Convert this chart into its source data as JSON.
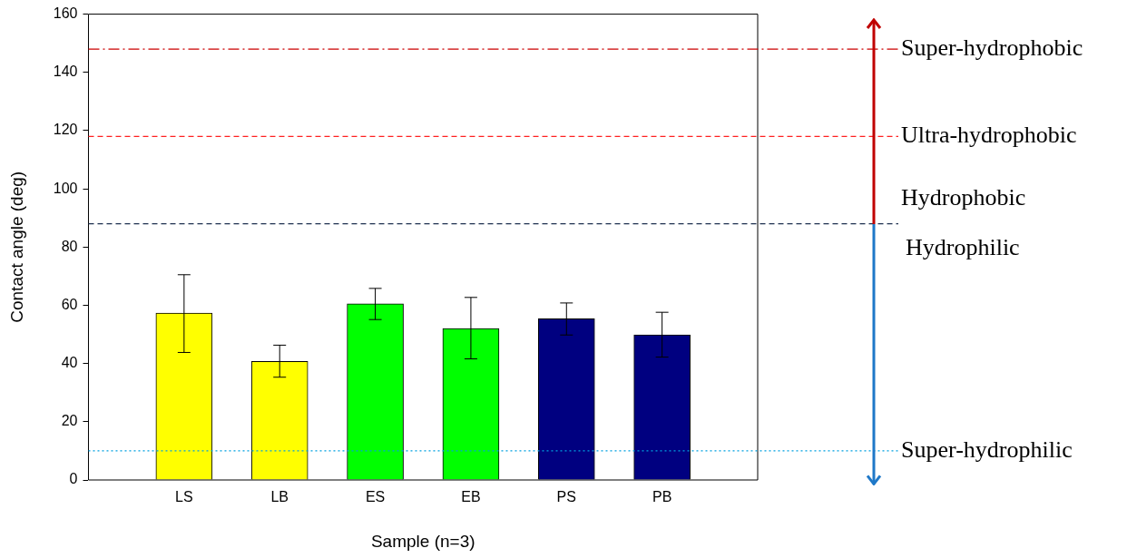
{
  "chart_data": {
    "type": "bar",
    "xlabel": "Sample (n=3)",
    "ylabel": "Contact angle (deg)",
    "categories": [
      "LS",
      "LB",
      "ES",
      "EB",
      "PS",
      "PB"
    ],
    "values": [
      57.3,
      40.7,
      60.5,
      52,
      55.4,
      49.8
    ],
    "colors": [
      "#ffff00",
      "#ffff00",
      "#00ff00",
      "#00ff00",
      "#000080",
      "#000080"
    ],
    "errors": [
      [
        43.8,
        70.5
      ],
      [
        35.3,
        46.3
      ],
      [
        55.1,
        65.8
      ],
      [
        41.6,
        62.7
      ],
      [
        49.8,
        60.8
      ],
      [
        42.2,
        57.6
      ]
    ],
    "ylim": [
      0,
      160
    ],
    "yticks": [
      0,
      20,
      40,
      60,
      80,
      100,
      120,
      140,
      160
    ],
    "grid": false,
    "legend": false,
    "ref_lines": [
      {
        "axis": "y",
        "value": 148,
        "label": "Super-hydrophobic",
        "color": "#cc0000",
        "line_style": "dashdot"
      },
      {
        "axis": "y",
        "value": 118,
        "label": "Ultra-hydrophobic",
        "color": "#ff2020",
        "line_style": "dashed"
      },
      {
        "axis": "y",
        "value": 88,
        "label": "Hydrophobic",
        "color": "#1f3050",
        "line_style": "dashed"
      },
      {
        "axis": "y",
        "value": 10,
        "label": "Super-hydrophilic",
        "color": "#00a0e0",
        "line_style": "dotted"
      }
    ],
    "annotations": [
      "Hydrophilic"
    ]
  }
}
